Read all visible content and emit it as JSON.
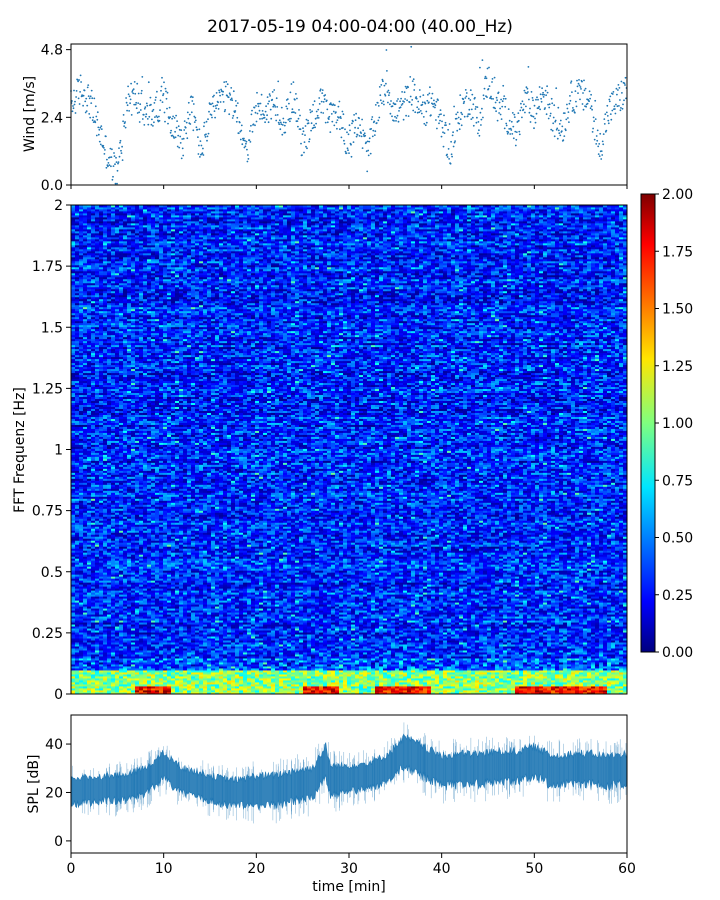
{
  "figure": {
    "title": "2017-05-19 04:00-04:00 (40.00_Hz)"
  },
  "chart_data": [
    {
      "type": "scatter",
      "name": "wind",
      "ylabel": "Wind [m/s]",
      "xlim": [
        0,
        60
      ],
      "ylim": [
        0,
        5.0
      ],
      "yticks": [
        0.0,
        2.4,
        4.8
      ],
      "ytick_labels": [
        "0.0",
        "2.4",
        "4.8"
      ],
      "xticks": [
        0,
        10,
        20,
        30,
        40,
        50,
        60
      ],
      "grid": false,
      "color": "#1f77b4",
      "x": [
        0,
        1,
        2,
        3,
        4,
        5,
        6,
        7,
        8,
        9,
        10,
        11,
        12,
        13,
        14,
        15,
        16,
        17,
        18,
        19,
        20,
        21,
        22,
        23,
        24,
        25,
        26,
        27,
        28,
        29,
        30,
        31,
        32,
        33,
        34,
        35,
        36,
        37,
        38,
        39,
        40,
        41,
        42,
        43,
        44,
        45,
        46,
        47,
        48,
        49,
        50,
        51,
        52,
        53,
        54,
        55,
        56,
        57,
        58,
        59,
        60
      ],
      "y": [
        2.8,
        3.4,
        3.0,
        2.0,
        1.0,
        0.4,
        2.9,
        3.2,
        2.5,
        2.6,
        3.1,
        2.2,
        1.5,
        2.8,
        1.2,
        2.4,
        3.0,
        3.1,
        2.5,
        1.2,
        2.8,
        2.6,
        3.0,
        2.2,
        3.2,
        1.4,
        2.4,
        2.9,
        2.3,
        2.5,
        1.3,
        2.4,
        1.0,
        2.6,
        3.6,
        2.5,
        2.9,
        3.2,
        2.6,
        3.0,
        2.1,
        1.2,
        2.6,
        3.1,
        2.2,
        3.8,
        2.8,
        2.5,
        1.8,
        3.0,
        2.6,
        3.3,
        2.4,
        2.0,
        3.1,
        3.2,
        3.0,
        1.2,
        2.6,
        3.0,
        3.4
      ]
    },
    {
      "type": "heatmap",
      "name": "spectrogram",
      "ylabel": "FFT Frequenz [Hz]",
      "xlim": [
        0,
        60
      ],
      "ylim": [
        0,
        2
      ],
      "yticks": [
        0,
        0.25,
        0.5,
        0.75,
        1,
        1.25,
        1.5,
        1.75,
        2
      ],
      "ytick_labels": [
        "0",
        "0.25",
        "0.5",
        "0.75",
        "1",
        "1.25",
        "1.5",
        "1.75",
        "2"
      ],
      "colormap": "jet",
      "colorbar": {
        "min": 0.0,
        "max": 2.0,
        "ticks": [
          0.0,
          0.25,
          0.5,
          0.75,
          1.0,
          1.25,
          1.5,
          1.75,
          2.0
        ],
        "tick_labels": [
          "0.00",
          "0.25",
          "0.50",
          "0.75",
          "1.00",
          "1.25",
          "1.50",
          "1.75",
          "2.00"
        ]
      },
      "typical_value_range": [
        0.1,
        0.6
      ],
      "low_frequency_band_hz": [
        0,
        0.1
      ],
      "low_frequency_band_value": 1.2,
      "high_energy_segments_min": [
        [
          7,
          11
        ],
        [
          25,
          29
        ],
        [
          33,
          39
        ],
        [
          48,
          58
        ]
      ],
      "high_energy_segment_value": 2.0
    },
    {
      "type": "area",
      "name": "spl",
      "xlabel": "time [min]",
      "ylabel": "SPL [dB]",
      "xlim": [
        0,
        60
      ],
      "ylim": [
        -5,
        52
      ],
      "yticks": [
        0,
        20,
        40
      ],
      "ytick_labels": [
        "0",
        "20",
        "40"
      ],
      "xticks": [
        0,
        10,
        20,
        30,
        40,
        50,
        60
      ],
      "xtick_labels": [
        "0",
        "10",
        "20",
        "30",
        "40",
        "50",
        "60"
      ],
      "color": "#1f77b4",
      "x": [
        0,
        2,
        4,
        6,
        8,
        10,
        12,
        14,
        16,
        18,
        20,
        22,
        24,
        26,
        27.5,
        28,
        30,
        32,
        34,
        36,
        38,
        40,
        42,
        44,
        46,
        48,
        50,
        52,
        54,
        56,
        58,
        60
      ],
      "mean": [
        21,
        21,
        22,
        22,
        25,
        31,
        25,
        23,
        21,
        20,
        21,
        21,
        23,
        24,
        33,
        25,
        26,
        27,
        30,
        37,
        33,
        29,
        30,
        30,
        31,
        31,
        33,
        29,
        30,
        30,
        29,
        30
      ],
      "spread": [
        6,
        6,
        6,
        6,
        6,
        6,
        6,
        6,
        6,
        6,
        7,
        7,
        7,
        7,
        7,
        7,
        6,
        6,
        6,
        7,
        7,
        7,
        7,
        7,
        7,
        7,
        7,
        7,
        7,
        7,
        7,
        7
      ]
    }
  ]
}
